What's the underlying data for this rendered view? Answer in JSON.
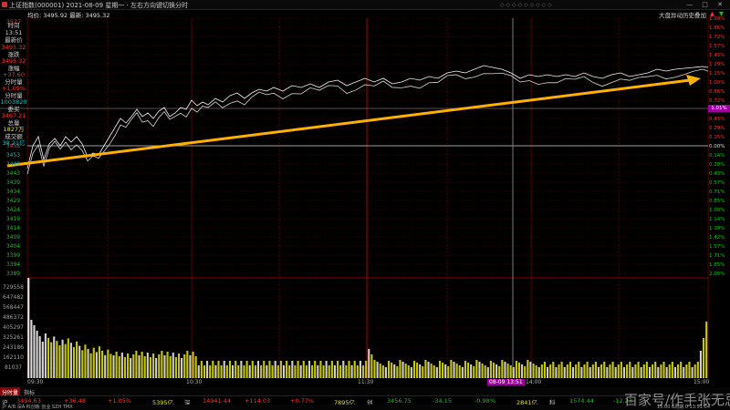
{
  "title": {
    "text": "上证指数(000001)  2021-08-09 星期一  · 左右方向键切换分时",
    "controls": "— □ ✕"
  },
  "info": {
    "prefix": "均价: 3495.92  最新: 3495.32",
    "btn_auction": "大盘异动",
    "btn_history": "历史叠加",
    "btn_up": "▲",
    "btn_down": "▼"
  },
  "left_panel": {
    "top_label": "3527",
    "time_label": "时间",
    "time_value": "13:51",
    "last_label": "最新价",
    "last_value": "3495.32",
    "change_label": "涨跌",
    "change_value": "+37.60",
    "pct_label": "涨幅",
    "pct_value": "+1.09%",
    "vol_label": "分时量",
    "vol_value": "1003820",
    "amount_label": "成交额",
    "amount_value": "38.21亿",
    "total_vol_label": "总量",
    "total_vol_value": "1827万",
    "extra_price": "3495.32",
    "extra_price2": "3467.21",
    "buy_label": "委买"
  },
  "price_axis_left": [
    "3458",
    "3453",
    "3448",
    "3443",
    "3439",
    "3434",
    "3429",
    "3424",
    "3419",
    "3414",
    "3409",
    "3404",
    "3399",
    "3394",
    "3389"
  ],
  "price_axis_left_red": [
    "3458"
  ],
  "right_axis_pos": [
    "1.99%",
    "1.86%",
    "1.72%",
    "1.57%",
    "1.43%",
    "1.29%",
    "1.15%",
    "1.00%",
    "0.86%",
    "0.72%",
    "0.57%",
    "0.43%",
    "0.29%",
    "0.15%"
  ],
  "right_axis_zero": "0.00%",
  "right_axis_neg": [
    "0.14%",
    "0.28%",
    "0.43%",
    "0.57%",
    "0.71%",
    "0.85%",
    "1.00%",
    "1.14%",
    "1.28%",
    "1.42%",
    "1.57%",
    "1.71%",
    "1.85%",
    "2.00%"
  ],
  "cursor_pct": "1.01%",
  "volume_axis": [
    "729558",
    "647482",
    "568447",
    "486372",
    "405297",
    "325261",
    "243186",
    "162110",
    "81037"
  ],
  "time_labels": [
    "09:30",
    "10:30",
    "11:30",
    "14:00",
    "15:00"
  ],
  "time_badge": "08-09 13:51",
  "tabs": {
    "active": "分时量",
    "items": [
      "指标",
      "分时指数",
      "分时量",
      "资金流",
      "BBI",
      "主力净量",
      "更多"
    ]
  },
  "status": {
    "sh_label": "沪",
    "sh_price": "3494.63",
    "sh_change": "+36.48",
    "sh_pct": "+1.05%",
    "sh_amount": "5395亿",
    "sz_label": "深",
    "sz_price": "14941.44",
    "sz_change": "+114.03",
    "sz_pct": "+0.77%",
    "sz_amount": "7895亿",
    "cy_label": "创",
    "cy_price": "3456.75",
    "cy_change": "-34.15",
    "cy_pct": "-0.98%",
    "cy_amount": "2841亿",
    "kc_label": "科",
    "kc_price": "1574.44",
    "kc_change": "-12.23"
  },
  "bottom_bar": {
    "left": "沪  A/B  深A  科创板  创业  SZH  TMX",
    "right": "15:00  6周期  0  13:51:04"
  },
  "watermark": "百家号/作手张无忌",
  "colors": {
    "up": "#ff3030",
    "down": "#00d000",
    "price_line": "#e8e8e8",
    "avg_line": "#e6e600",
    "arrow": "#ffb000",
    "grid": "#8b0000"
  }
}
